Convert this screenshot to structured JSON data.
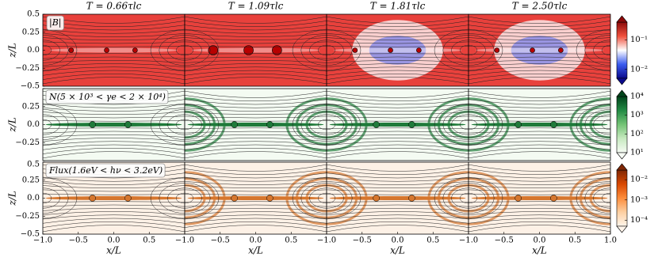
{
  "chart_data": [
    {
      "type": "heatmap",
      "panel_titles": [
        "T = 0.66τlc",
        "T = 1.09τlc",
        "T = 1.81τlc",
        "T = 2.50τlc"
      ],
      "annotation": "|B|",
      "ylabel": "z/L",
      "xlim": [
        -1,
        1
      ],
      "ylim": [
        -0.5,
        0.5
      ],
      "yticks": [
        0.5,
        0.25,
        {
          "value": 0,
          "label": "0.0"
        },
        {
          "value": -0.25,
          "label": "−0.25"
        },
        {
          "value": -0.5,
          "label": "−0.5"
        }
      ],
      "colorbar": {
        "scale": "log",
        "lim": [
          0.005,
          0.4
        ],
        "ticks": [
          {
            "value": 0.1,
            "label": "10⁻¹"
          },
          {
            "value": 0.01,
            "label": "10⁻²"
          }
        ],
        "colors": [
          "#0a0a8c",
          "#3a5cf0",
          "#ffffff",
          "#f0503c",
          "#8c0a0a"
        ]
      },
      "background": "#e8413c",
      "accent": "#ffffff"
    },
    {
      "type": "heatmap",
      "annotation": "N(5 × 10³ < γe < 2 × 10⁴)",
      "ylabel": "z/L",
      "xlim": [
        -1,
        1
      ],
      "ylim": [
        -0.5,
        0.5
      ],
      "yticks": [
        0.5,
        0.25,
        {
          "value": 0,
          "label": "0.0"
        },
        {
          "value": -0.25,
          "label": "−0.25"
        },
        {
          "value": -0.5,
          "label": "−0.5"
        }
      ],
      "colorbar": {
        "scale": "log",
        "lim": [
          10,
          10000
        ],
        "ticks": [
          {
            "value": 10000,
            "label": "10⁴"
          },
          {
            "value": 1000,
            "label": "10³"
          },
          {
            "value": 100,
            "label": "10²"
          },
          {
            "value": 10,
            "label": "10¹"
          }
        ],
        "colors": [
          "#f7fcf5",
          "#c7e9c0",
          "#74c476",
          "#238b45",
          "#00441b"
        ]
      },
      "background": "#f4fbf2",
      "accent": "#1f7a3a"
    },
    {
      "type": "heatmap",
      "annotation": "Flux(1.6eV < hν < 3.2eV)",
      "ylabel": "z/L",
      "xlabel": "x/L",
      "xlim": [
        -1,
        1
      ],
      "ylim": [
        -0.5,
        0.5
      ],
      "xticks": [
        {
          "value": -1,
          "label": "−1.0"
        },
        {
          "value": -0.5,
          "label": "−0.5"
        },
        {
          "value": 0,
          "label": "0.0"
        },
        0.5,
        {
          "value": 1,
          "label": "1.0"
        }
      ],
      "yticks": [
        0.5,
        0.25,
        {
          "value": 0,
          "label": "0.0"
        },
        {
          "value": -0.25,
          "label": "−0.25"
        },
        {
          "value": -0.5,
          "label": "−0.5"
        }
      ],
      "colorbar": {
        "scale": "log",
        "lim": [
          5e-05,
          0.03
        ],
        "ticks": [
          {
            "value": 0.01,
            "label": "10⁻²"
          },
          {
            "value": 0.001,
            "label": "10⁻³"
          },
          {
            "value": 0.0001,
            "label": "10⁻⁴"
          }
        ],
        "colors": [
          "#fff5eb",
          "#fdd0a2",
          "#fd8d3c",
          "#d94801",
          "#7f2704"
        ]
      },
      "background": "#fdf1e6",
      "accent": "#d6762e"
    }
  ]
}
